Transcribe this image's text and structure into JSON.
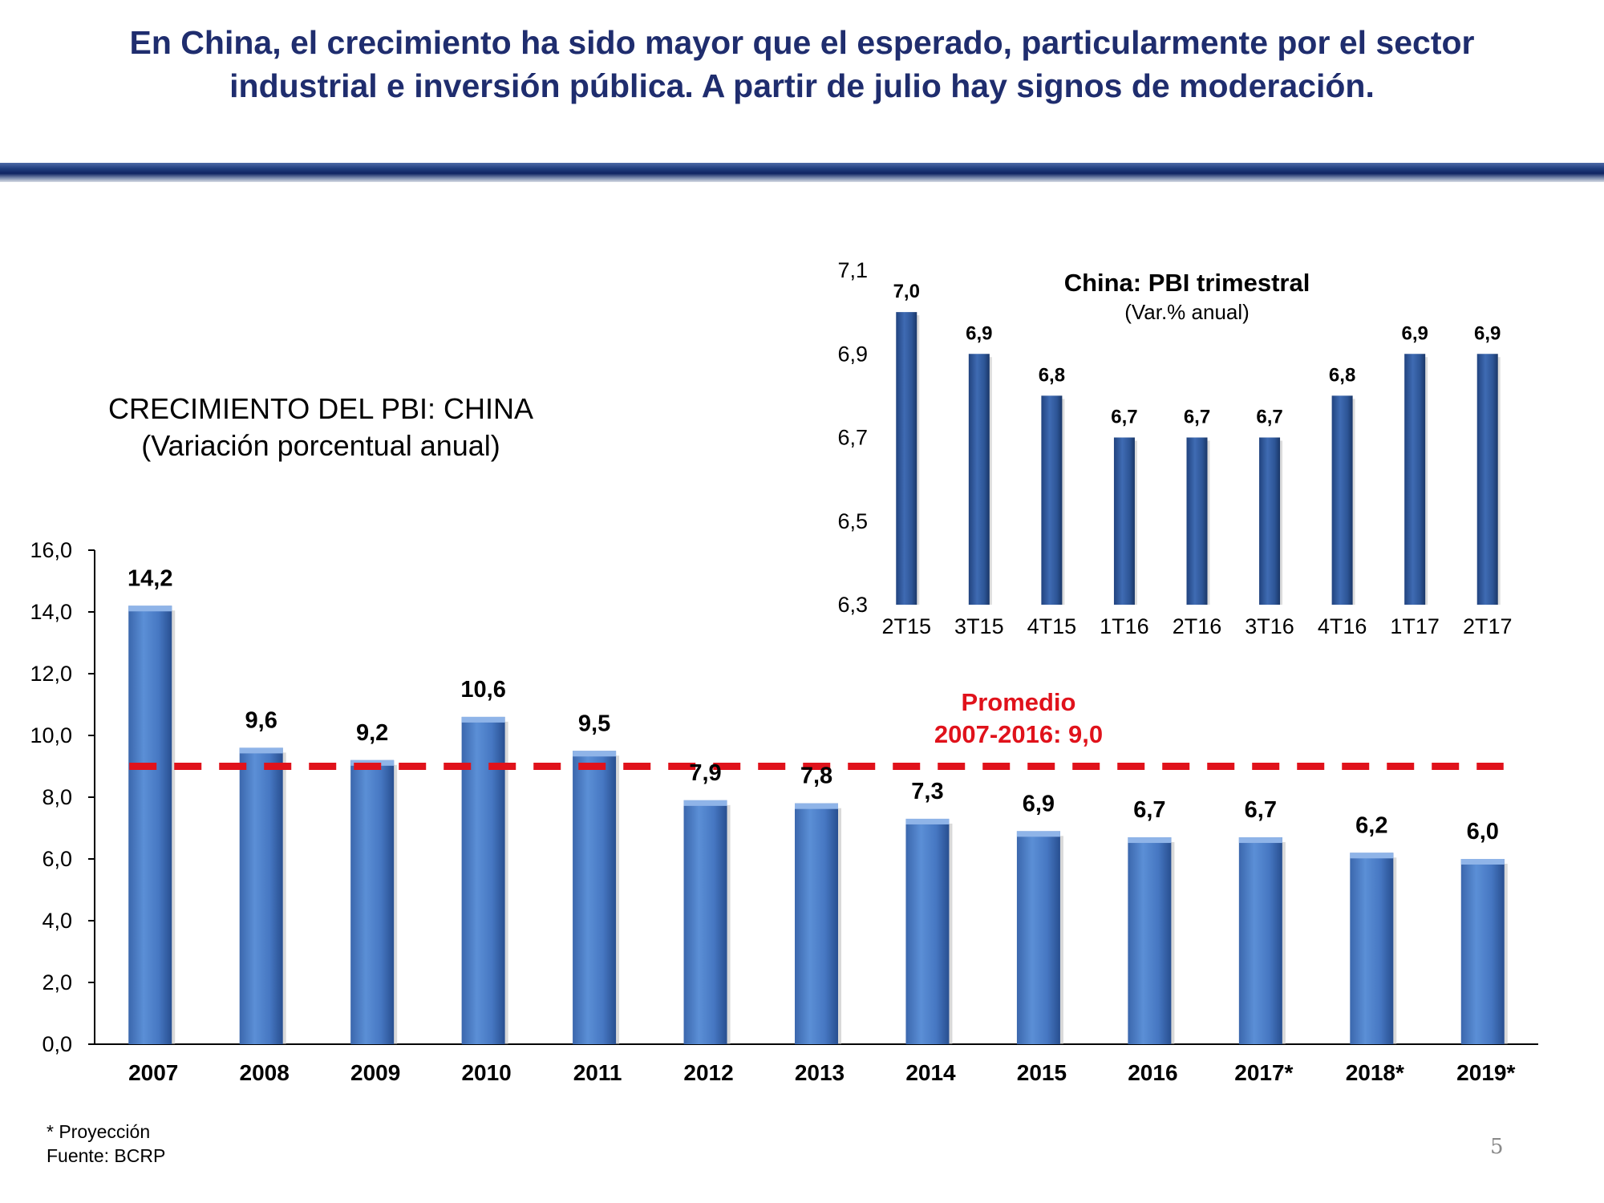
{
  "slide": {
    "title_line1": "En China, el crecimiento ha sido mayor que el esperado, particularmente por el sector",
    "title_line2": "industrial e inversión pública. A partir de julio hay signos de moderación.",
    "page_number": "5"
  },
  "footnote": {
    "line1": "* Proyección",
    "line2": "Fuente: BCRP"
  },
  "colors": {
    "title": "#1f2d6e",
    "bar": "#4f81c7",
    "bar_inset": "#2f5597",
    "average_line": "#e0121b"
  },
  "chart_data": [
    {
      "type": "bar",
      "title": "CRECIMIENTO DEL PBI: CHINA",
      "subtitle": "(Variación porcentual anual)",
      "categories": [
        "2007",
        "2008",
        "2009",
        "2010",
        "2011",
        "2012",
        "2013",
        "2014",
        "2015",
        "2016",
        "2017*",
        "2018*",
        "2019*"
      ],
      "values": [
        14.2,
        9.6,
        9.2,
        10.6,
        9.5,
        7.9,
        7.8,
        7.3,
        6.9,
        6.7,
        6.7,
        6.2,
        6.0
      ],
      "value_labels": [
        "14,2",
        "9,6",
        "9,2",
        "10,6",
        "9,5",
        "7,9",
        "7,8",
        "7,3",
        "6,9",
        "6,7",
        "6,7",
        "6,2",
        "6,0"
      ],
      "yticks": [
        "0,0",
        "2,0",
        "4,0",
        "6,0",
        "8,0",
        "10,0",
        "12,0",
        "14,0",
        "16,0"
      ],
      "ylim": [
        0,
        16
      ],
      "xlabel": "",
      "ylabel": "",
      "grid": false,
      "average": {
        "value": 9.0,
        "label_line1": "Promedio",
        "label_line2": "2007-2016: 9,0"
      }
    },
    {
      "type": "bar",
      "title": "China: PBI trimestral",
      "subtitle": "(Var.% anual)",
      "categories": [
        "2T15",
        "3T15",
        "4T15",
        "1T16",
        "2T16",
        "3T16",
        "4T16",
        "1T17",
        "2T17"
      ],
      "values": [
        7.0,
        6.9,
        6.8,
        6.7,
        6.7,
        6.7,
        6.8,
        6.9,
        6.9
      ],
      "value_labels": [
        "7,0",
        "6,9",
        "6,8",
        "6,7",
        "6,7",
        "6,7",
        "6,8",
        "6,9",
        "6,9"
      ],
      "yticks": [
        "6,3",
        "6,5",
        "6,7",
        "6,9",
        "7,1"
      ],
      "ylim": [
        6.3,
        7.1
      ],
      "xlabel": "",
      "ylabel": "",
      "grid": false
    }
  ]
}
